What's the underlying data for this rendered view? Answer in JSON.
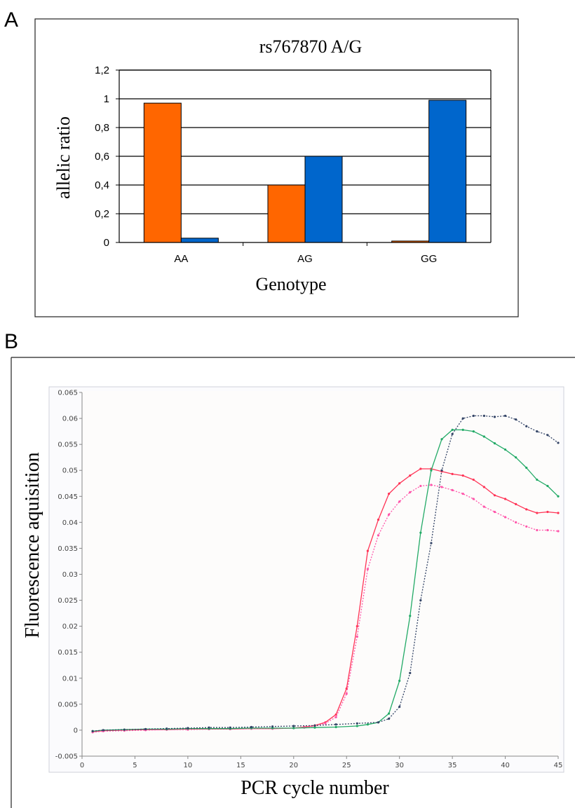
{
  "panels": {
    "a_letter": "A",
    "b_letter": "B"
  },
  "chart_data": [
    {
      "type": "bar",
      "title": "rs767870 A/G",
      "xlabel": "Genotype",
      "ylabel": "allelic ratio",
      "categories": [
        "AA",
        "AG",
        "GG"
      ],
      "series": [
        {
          "color": "#ff6600",
          "values": [
            0.97,
            0.4,
            0.01
          ]
        },
        {
          "color": "#0066cc",
          "values": [
            0.03,
            0.6,
            0.99
          ]
        }
      ],
      "ylim": [
        0,
        1.2
      ],
      "yticks": [
        0,
        0.2,
        0.4,
        0.6,
        0.8,
        1,
        1.2
      ],
      "ytick_labels": [
        "0",
        "0,2",
        "0,4",
        "0,6",
        "0,8",
        "1",
        "1,2"
      ],
      "grid": true,
      "legend": "none"
    },
    {
      "type": "line",
      "xlabel": "PCR cycle number",
      "ylabel": "Fluorescence aquisition",
      "xlim": [
        0,
        45
      ],
      "ylim": [
        -0.005,
        0.065
      ],
      "xticks": [
        0,
        5,
        10,
        15,
        20,
        25,
        30,
        35,
        40,
        45
      ],
      "yticks": [
        -0.005,
        0,
        0.005,
        0.01,
        0.015,
        0.02,
        0.025,
        0.03,
        0.035,
        0.04,
        0.045,
        0.05,
        0.055,
        0.06,
        0.065
      ],
      "ytick_labels": [
        "-0.005",
        "0",
        "0.005",
        "0.01",
        "0.015",
        "0.02",
        "0.025",
        "0.03",
        "0.035",
        "0.04",
        "0.045",
        "0.05",
        "0.055",
        "0.06",
        "0.065"
      ],
      "grid": false,
      "legend": "none",
      "series": [
        {
          "color": "#ff3355",
          "dash": "solid",
          "x": [
            1,
            2,
            4,
            6,
            8,
            10,
            12,
            14,
            16,
            18,
            20,
            21,
            22,
            23,
            24,
            25,
            26,
            27,
            28,
            29,
            30,
            31,
            32,
            33,
            34,
            35,
            36,
            37,
            38,
            39,
            40,
            41,
            42,
            43,
            44,
            45
          ],
          "y": [
            -0.0003,
            -0.0001,
            0,
            0.0001,
            0.0001,
            0.0002,
            0.0002,
            0.0002,
            0.0003,
            0.0003,
            0.0004,
            0.0006,
            0.0009,
            0.0015,
            0.003,
            0.008,
            0.02,
            0.0345,
            0.0405,
            0.0455,
            0.0475,
            0.049,
            0.0503,
            0.0503,
            0.0498,
            0.0493,
            0.049,
            0.0482,
            0.0468,
            0.0452,
            0.0445,
            0.0435,
            0.0425,
            0.0418,
            0.042,
            0.0418
          ]
        },
        {
          "color": "#ff55aa",
          "dash": "dotted",
          "x": [
            1,
            2,
            4,
            6,
            8,
            10,
            12,
            14,
            16,
            18,
            20,
            21,
            22,
            23,
            24,
            25,
            26,
            27,
            28,
            29,
            30,
            31,
            32,
            33,
            34,
            35,
            36,
            37,
            38,
            39,
            40,
            41,
            42,
            43,
            44,
            45
          ],
          "y": [
            -0.0004,
            -0.0002,
            -0.0001,
            0,
            0.0001,
            0.0001,
            0.0002,
            0.0002,
            0.0003,
            0.0003,
            0.0004,
            0.0005,
            0.0008,
            0.0013,
            0.0025,
            0.007,
            0.018,
            0.031,
            0.0375,
            0.0415,
            0.044,
            0.0458,
            0.047,
            0.0472,
            0.0468,
            0.0462,
            0.0455,
            0.0445,
            0.043,
            0.042,
            0.041,
            0.04,
            0.0392,
            0.0385,
            0.0385,
            0.0383
          ]
        },
        {
          "color": "#22aa66",
          "dash": "solid",
          "x": [
            1,
            2,
            4,
            6,
            8,
            10,
            12,
            14,
            16,
            18,
            20,
            22,
            24,
            26,
            27,
            28,
            29,
            30,
            31,
            32,
            33,
            34,
            35,
            36,
            37,
            38,
            39,
            40,
            41,
            42,
            43,
            44,
            45
          ],
          "y": [
            -0.0002,
            0,
            0.0001,
            0.0002,
            0.0002,
            0.0003,
            0.0003,
            0.0003,
            0.0004,
            0.0004,
            0.0004,
            0.0005,
            0.0006,
            0.0008,
            0.0011,
            0.0015,
            0.0032,
            0.0095,
            0.022,
            0.038,
            0.05,
            0.056,
            0.0578,
            0.0578,
            0.0575,
            0.0565,
            0.0552,
            0.054,
            0.0525,
            0.0505,
            0.0482,
            0.047,
            0.045
          ]
        },
        {
          "color": "#334466",
          "dash": "dotted",
          "x": [
            1,
            2,
            4,
            6,
            8,
            10,
            12,
            14,
            16,
            18,
            20,
            22,
            24,
            26,
            28,
            29,
            30,
            31,
            32,
            33,
            34,
            35,
            36,
            37,
            38,
            39,
            40,
            41,
            42,
            43,
            44,
            45
          ],
          "y": [
            -0.0002,
            0,
            0.0001,
            0.0002,
            0.0003,
            0.0004,
            0.0005,
            0.0005,
            0.0006,
            0.0007,
            0.0008,
            0.0009,
            0.0011,
            0.0013,
            0.0015,
            0.0022,
            0.0045,
            0.011,
            0.025,
            0.036,
            0.05,
            0.057,
            0.06,
            0.0605,
            0.0605,
            0.0603,
            0.0605,
            0.0598,
            0.0585,
            0.0575,
            0.0568,
            0.0553
          ]
        }
      ]
    }
  ]
}
